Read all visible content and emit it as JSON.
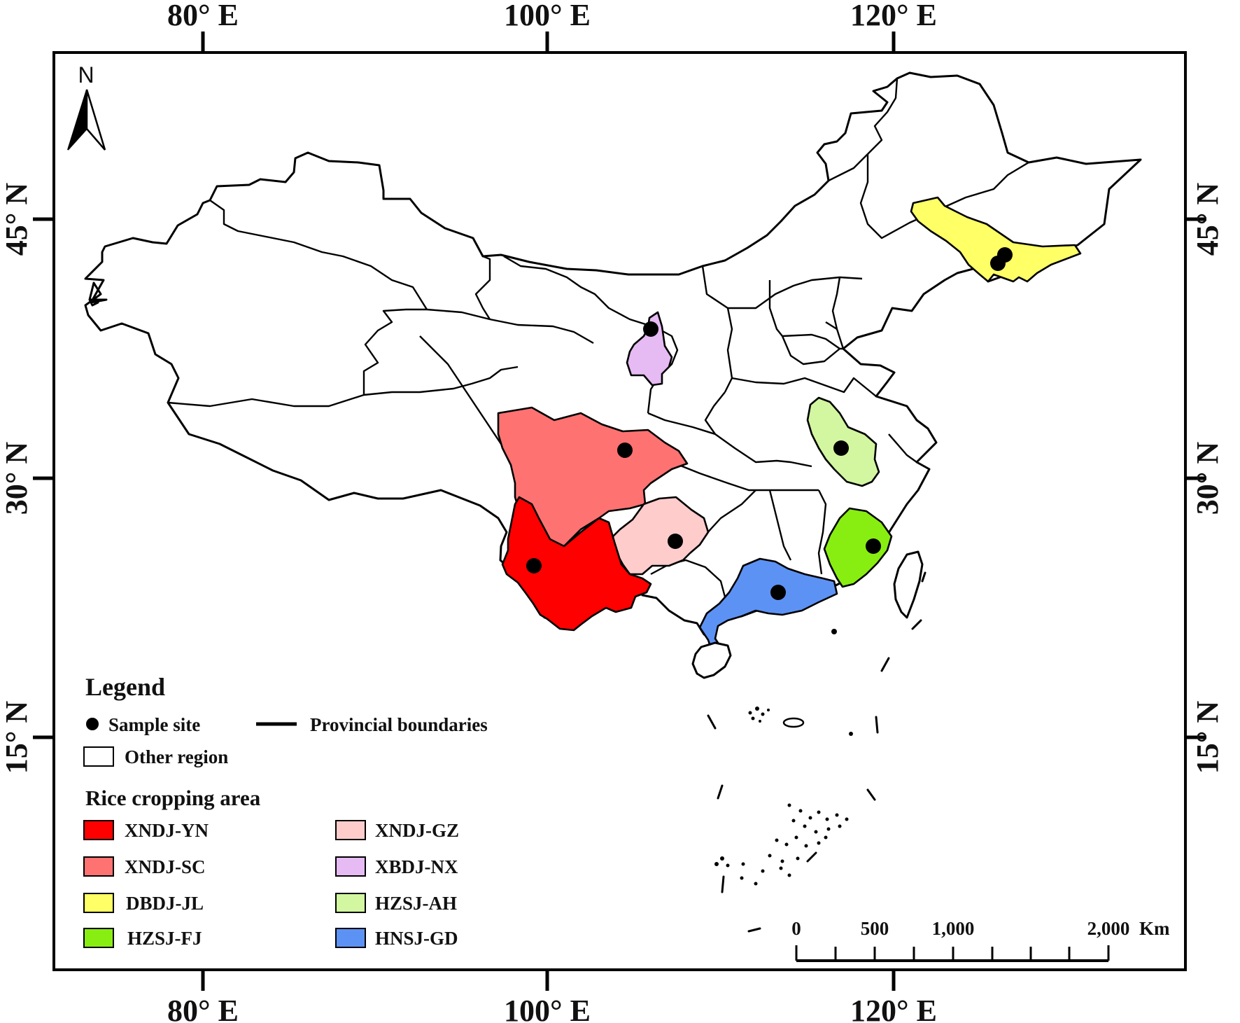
{
  "axes": {
    "top_labels": [
      "80° E",
      "100° E",
      "120° E"
    ],
    "bottom_labels": [
      "80° E",
      "100° E",
      "120° E"
    ],
    "left_labels": [
      "45° N",
      "30° N",
      "15° N"
    ],
    "right_labels": [
      "45° N",
      "30° N",
      "15° N"
    ]
  },
  "north_arrow": {
    "label": "N",
    "icon": "north-arrow-icon"
  },
  "legend": {
    "title": "Legend",
    "sample_site": "Sample site",
    "provincial_boundaries": "Provincial boundaries",
    "other_region": "Other region",
    "rice_title": "Rice cropping area",
    "areas": [
      {
        "label": "XNDJ-YN",
        "color": "#ff0000"
      },
      {
        "label": "XNDJ-SC",
        "color": "#ff7272"
      },
      {
        "label": "DBDJ-JL",
        "color": "#ffff66"
      },
      {
        "label": "HZSJ-FJ",
        "color": "#88ee11"
      },
      {
        "label": "XNDJ-GZ",
        "color": "#ffcccc"
      },
      {
        "label": "XBDJ-NX",
        "color": "#e6baf3"
      },
      {
        "label": "HZSJ-AH",
        "color": "#d2f7a0"
      },
      {
        "label": "HNSJ-GD",
        "color": "#5d92f5"
      }
    ]
  },
  "scale_bar": {
    "ticks": [
      "0",
      "500",
      "1,000",
      "2,000"
    ],
    "unit": "Km"
  },
  "colors": {
    "other_region": "#ffffff",
    "sample_site": "#000000",
    "boundary": "#000000"
  }
}
